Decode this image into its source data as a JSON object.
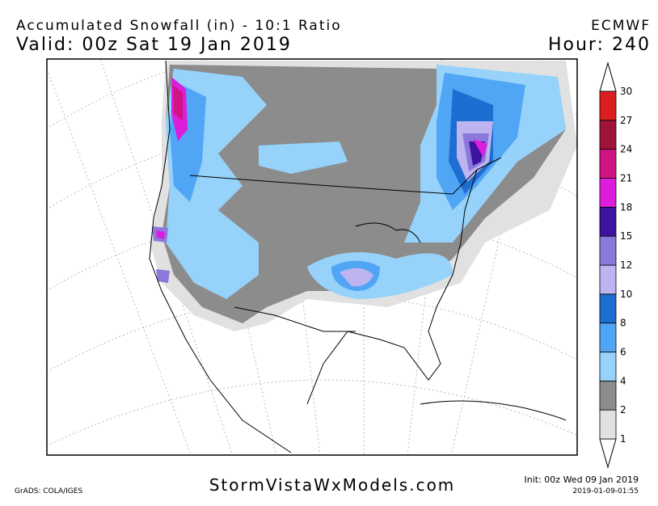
{
  "header": {
    "title": "Accumulated Snowfall (in) - 10:1 Ratio",
    "valid": "Valid: 00z Sat 19 Jan 2019",
    "model": "ECMWF",
    "hour": "Hour: 240"
  },
  "legend": {
    "levels": [
      1,
      2,
      4,
      6,
      8,
      10,
      12,
      15,
      18,
      21,
      24,
      27,
      30
    ],
    "colors": [
      "#e1e1e1",
      "#8c8c8c",
      "#96d2fa",
      "#50a5f5",
      "#1e6ed2",
      "#beb4f0",
      "#8c78dc",
      "#3c14a0",
      "#dc1edc",
      "#d21482",
      "#a0143c",
      "#dc1e1e"
    ]
  },
  "footer": {
    "grads": "GrADS: COLA/IGES",
    "site": "StormVistaWxModels.com",
    "init": "Init: 00z Wed 09 Jan 2019",
    "stamp": "2019-01-09-01:55"
  }
}
